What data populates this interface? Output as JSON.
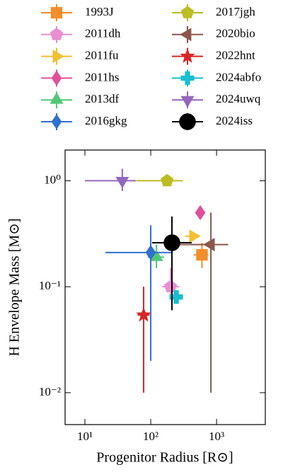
{
  "chart_data": {
    "type": "scatter",
    "x_label": "Progenitor Radius [R⊙]",
    "y_label": "H Envelope Mass [M⊙]",
    "log_x": true,
    "log_y": true,
    "xlim": [
      5,
      5500
    ],
    "ylim": [
      0.005,
      1.95
    ],
    "xticks": [
      {
        "value": 10,
        "label": "10¹"
      },
      {
        "value": 100,
        "label": "10²"
      },
      {
        "value": 1000,
        "label": "10³"
      }
    ],
    "yticks": [
      {
        "value": 0.01,
        "label": "10⁻²"
      },
      {
        "value": 0.1,
        "label": "10⁻¹"
      },
      {
        "value": 1,
        "label": "10⁰"
      }
    ],
    "series": [
      {
        "name": "1993J",
        "color": "#f28e2b",
        "marker": "square",
        "x": [
          600
        ],
        "values": [
          0.2
        ],
        "x_range": [
          450,
          750
        ],
        "y_range": [
          0.15,
          0.26
        ]
      },
      {
        "name": "2011dh",
        "color": "#e88fd0",
        "marker": "pentagon",
        "x": [
          200
        ],
        "values": [
          0.1
        ],
        "x_range": [
          150,
          270
        ],
        "y_range": [
          0.08,
          0.15
        ]
      },
      {
        "name": "2011fu",
        "color": "#f0c030",
        "marker": "triangle-right",
        "x": [
          440
        ],
        "values": [
          0.3
        ],
        "x_range": [
          330,
          520
        ],
        "y_range": [
          0.27,
          0.33
        ]
      },
      {
        "name": "2011hs",
        "color": "#e0509a",
        "marker": "diamond",
        "x": [
          565
        ],
        "values": [
          0.5
        ],
        "x_range": [
          500,
          640
        ],
        "y_range": [
          0.45,
          0.55
        ]
      },
      {
        "name": "2013df",
        "color": "#50c878",
        "marker": "triangle-up",
        "x": [
          122
        ],
        "values": [
          0.19
        ],
        "x_range": [
          90,
          160
        ],
        "y_range": [
          0.15,
          0.25
        ]
      },
      {
        "name": "2016gkg",
        "color": "#3070d0",
        "marker": "diamond",
        "x": [
          100
        ],
        "values": [
          0.21
        ],
        "x_range": [
          20.5,
          210
        ],
        "y_range": [
          0.02,
          0.38
        ]
      },
      {
        "name": "2017jgh",
        "color": "#bcbd22",
        "marker": "pentagon",
        "x": [
          177
        ],
        "values": [
          1.0
        ],
        "x_range": [
          61,
          305
        ],
        "y_range": [
          0.9,
          1.1
        ]
      },
      {
        "name": "2020bio",
        "color": "#8c564b",
        "marker": "triangle-left",
        "x": [
          820
        ],
        "values": [
          0.25
        ],
        "x_range": [
          210,
          1500
        ],
        "y_range": [
          0.01,
          0.5
        ]
      },
      {
        "name": "2022hnt",
        "color": "#d62728",
        "marker": "star",
        "x": [
          78
        ],
        "values": [
          0.054
        ],
        "x_range": [
          63,
          96
        ],
        "y_range": [
          0.01,
          0.1
        ]
      },
      {
        "name": "2024abfo",
        "color": "#17becf",
        "marker": "plus",
        "x": [
          244
        ],
        "values": [
          0.08
        ],
        "x_range": [
          215,
          275
        ],
        "y_range": [
          0.069,
          0.093
        ]
      },
      {
        "name": "2024uwq",
        "color": "#9467bd",
        "marker": "triangle-down",
        "x": [
          37
        ],
        "values": [
          1.0
        ],
        "x_range": [
          10,
          60
        ],
        "y_range": [
          0.8,
          1.3
        ]
      },
      {
        "name": "2024iss",
        "color": "#000000",
        "marker": "circle",
        "x": [
          210
        ],
        "values": [
          0.26
        ],
        "x_range": [
          105,
          420
        ],
        "y_range": [
          0.06,
          0.46
        ]
      }
    ]
  }
}
